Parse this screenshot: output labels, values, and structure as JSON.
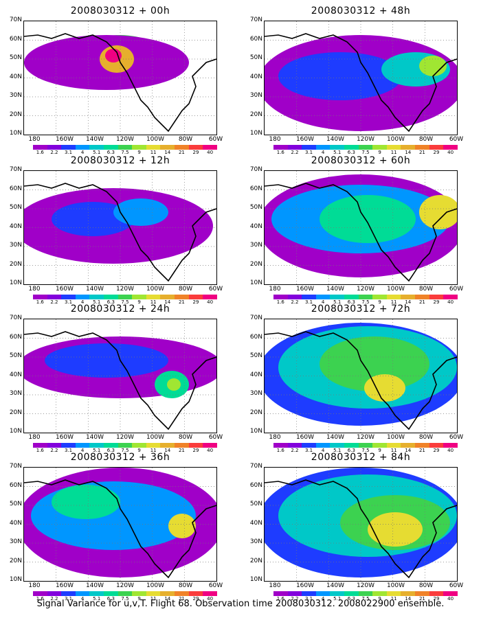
{
  "panels": [
    {
      "title": "2008030312 + 00h"
    },
    {
      "title": "2008030312 + 48h"
    },
    {
      "title": "2008030312 + 12h"
    },
    {
      "title": "2008030312 + 60h"
    },
    {
      "title": "2008030312 + 24h"
    },
    {
      "title": "2008030312 + 72h"
    },
    {
      "title": "2008030312 + 36h"
    },
    {
      "title": "2008030312 + 84h"
    }
  ],
  "lat_labels": [
    "70N",
    "60N",
    "50N",
    "40N",
    "30N",
    "20N",
    "10N"
  ],
  "lon_labels": [
    "180",
    "160W",
    "140W",
    "120W",
    "100W",
    "80W",
    "60W"
  ],
  "colorbar": {
    "labels": [
      "1.6",
      "2.2",
      "3.1",
      "4",
      "5.1",
      "6.3",
      "7.5",
      "9",
      "11",
      "14",
      "21",
      "29",
      "40"
    ],
    "colors": [
      "#a000c8",
      "#8200dc",
      "#1e3cff",
      "#0096ff",
      "#00c8c8",
      "#00dc96",
      "#3cd250",
      "#a0e632",
      "#e6dc32",
      "#e6af2d",
      "#f08228",
      "#fa3c3c",
      "#f00082"
    ]
  },
  "caption": "Signal Variance for u,v,T. Flight 68. Observation time 2008030312. 2008022900 ensemble."
}
